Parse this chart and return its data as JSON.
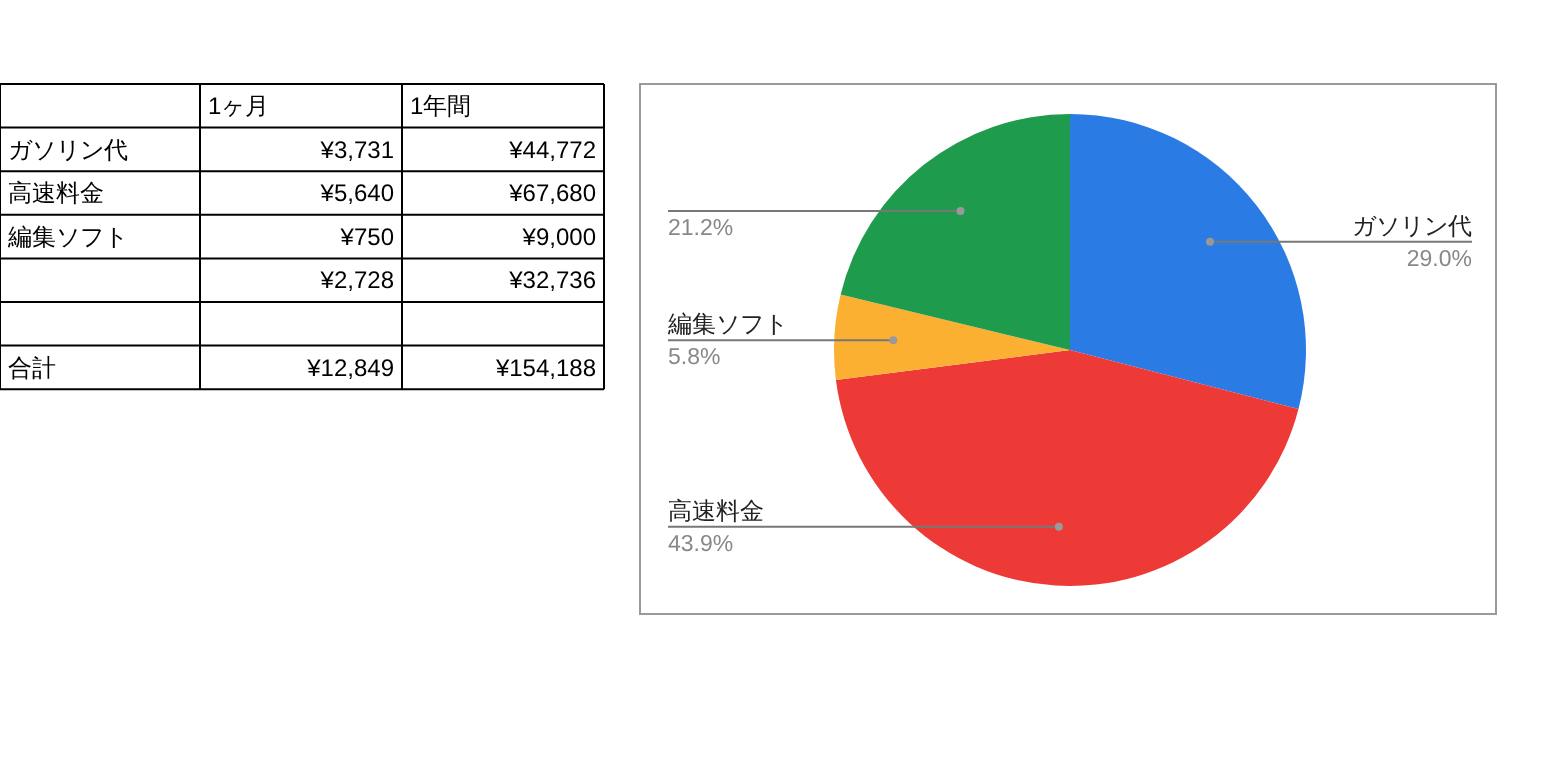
{
  "chart_data": [
    {
      "type": "other",
      "annotations": [
        null,
        "1ヶ月",
        "1年間",
        "ガソリン代",
        "¥3,731",
        "¥44,772",
        "高速料金",
        "¥5,640",
        "¥67,680",
        "編集ソフト",
        "¥750",
        "¥9,000",
        null,
        "¥2,728",
        "¥32,736",
        null,
        null,
        null,
        "合計",
        "¥12,849",
        "¥154,188"
      ]
    },
    {
      "type": "pie",
      "categories": [
        "ガソリン代",
        "高速料金",
        "編集ソフト",
        null
      ],
      "values": [
        29.0,
        43.9,
        5.8,
        21.2
      ],
      "colors": [
        "#2a7be4",
        "#ee3a37",
        "#fbb032",
        "#1e9b4d"
      ],
      "value_labels": [
        "29.0%",
        "43.9%",
        "5.8%",
        "21.2%"
      ]
    }
  ]
}
